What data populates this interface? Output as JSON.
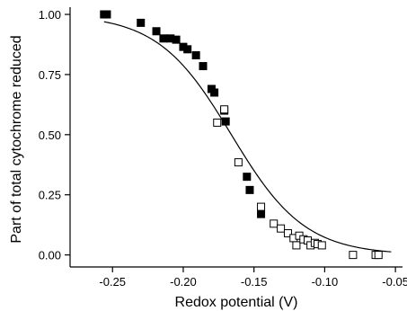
{
  "chart_data": {
    "type": "scatter",
    "xlabel": "Redox potential (V)",
    "ylabel": "Part of total cytochrome reduced",
    "xlim": [
      -0.28,
      -0.045
    ],
    "ylim": [
      -0.05,
      1.03
    ],
    "xticks": [
      -0.25,
      -0.2,
      -0.15,
      -0.1,
      -0.05
    ],
    "xtick_labels": [
      "-0.25",
      "-0.20",
      "-0.15",
      "-0.10",
      "-0.05"
    ],
    "yticks": [
      0.0,
      0.25,
      0.5,
      0.75,
      1.0
    ],
    "ytick_labels": [
      "0.00",
      "0.25",
      "0.50",
      "0.75",
      "1.00"
    ],
    "grid": false,
    "series": [
      {
        "marker": "filled-square",
        "color": "#000000",
        "x": [
          -0.256,
          -0.254,
          -0.23,
          -0.219,
          -0.214,
          -0.209,
          -0.205,
          -0.2,
          -0.197,
          -0.191,
          -0.186,
          -0.18,
          -0.178,
          -0.171,
          -0.17,
          -0.155,
          -0.153,
          -0.145
        ],
        "y": [
          1.0,
          1.0,
          0.965,
          0.93,
          0.9,
          0.9,
          0.895,
          0.865,
          0.855,
          0.83,
          0.785,
          0.69,
          0.675,
          0.6,
          0.555,
          0.325,
          0.27,
          0.17
        ]
      },
      {
        "marker": "open-square",
        "color": "#000000",
        "x": [
          -0.176,
          -0.171,
          -0.161,
          -0.145,
          -0.136,
          -0.131,
          -0.126,
          -0.122,
          -0.12,
          -0.118,
          -0.115,
          -0.112,
          -0.11,
          -0.107,
          -0.105,
          -0.102,
          -0.08,
          -0.064,
          -0.062
        ],
        "y": [
          0.55,
          0.605,
          0.385,
          0.2,
          0.13,
          0.11,
          0.09,
          0.07,
          0.04,
          0.08,
          0.065,
          0.06,
          0.04,
          0.05,
          0.045,
          0.04,
          0.0,
          0.0,
          0.0
        ]
      }
    ],
    "fit_curve": {
      "type": "nernst-sigmoid",
      "midpoint": -0.166,
      "slope": 0.026,
      "color": "#000000"
    }
  }
}
